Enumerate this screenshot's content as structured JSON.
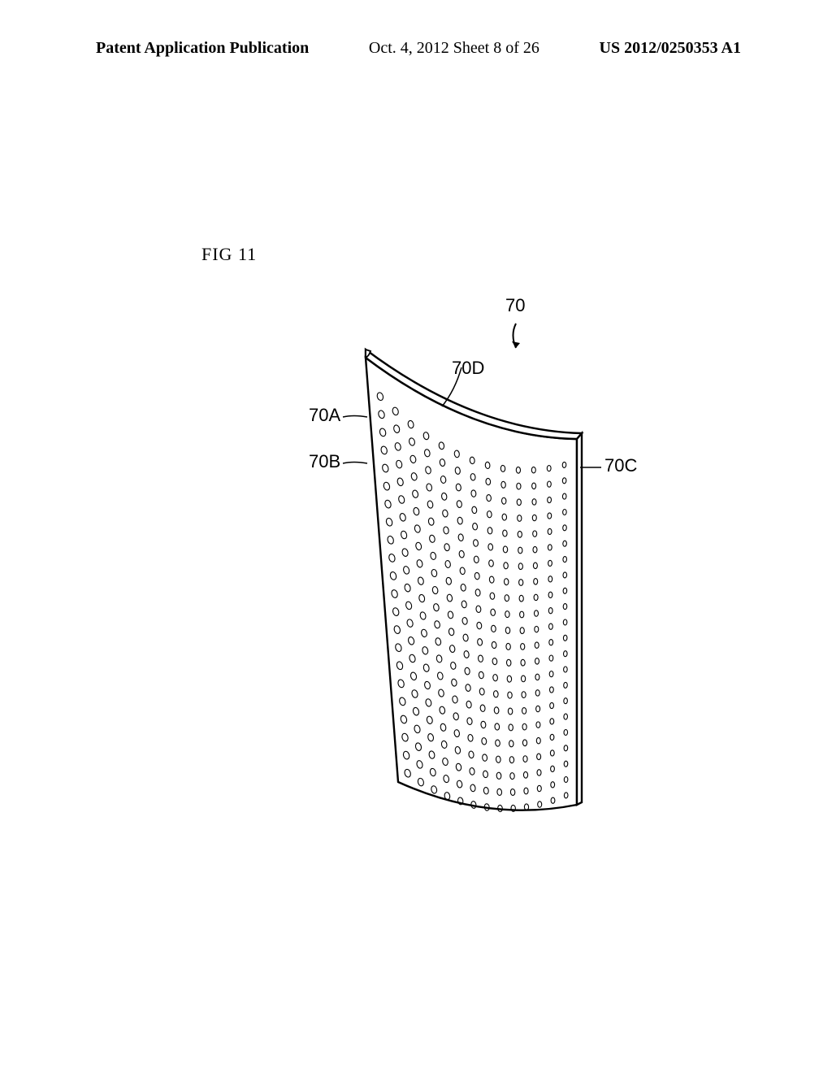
{
  "header": {
    "left": "Patent Application Publication",
    "center": "Oct. 4, 2012   Sheet 8 of 26",
    "right": "US 2012/0250353 A1"
  },
  "figure": {
    "label": "FIG 11",
    "main_ref": "70",
    "callouts": {
      "A": "70A",
      "B": "70B",
      "C": "70C",
      "D": "70D"
    },
    "stroke_color": "#000000",
    "stroke_width": 2.4,
    "dot_stroke_width": 1.1,
    "background": "#ffffff"
  }
}
